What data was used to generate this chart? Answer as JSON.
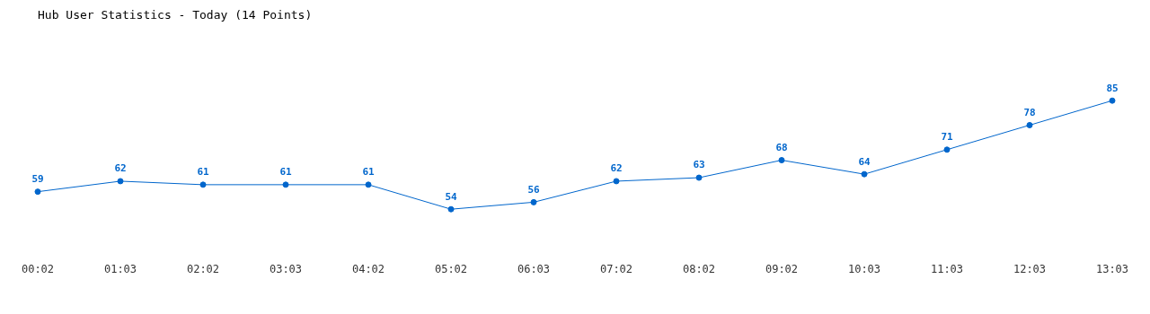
{
  "chart_data": {
    "type": "line",
    "title": "Hub User Statistics - Today (14 Points)",
    "categories": [
      "00:02",
      "01:03",
      "02:02",
      "03:03",
      "04:02",
      "05:02",
      "06:03",
      "07:02",
      "08:02",
      "09:02",
      "10:03",
      "11:03",
      "12:03",
      "13:03"
    ],
    "values": [
      59,
      62,
      61,
      61,
      61,
      54,
      56,
      62,
      63,
      68,
      64,
      71,
      78,
      85
    ],
    "color": "#0066cc",
    "data_labels": true,
    "marker": "circle",
    "grid": false,
    "legend": false
  }
}
